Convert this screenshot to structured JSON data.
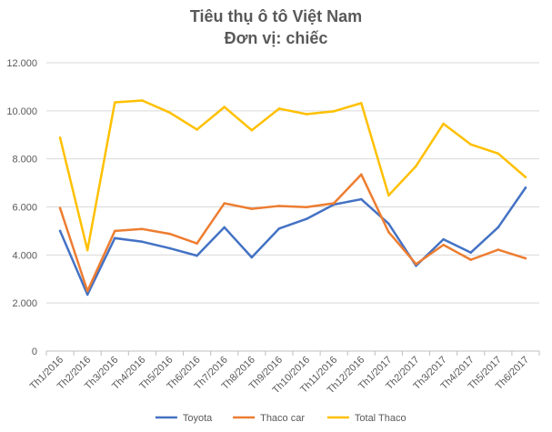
{
  "chart_data": {
    "type": "line",
    "title_line1": "Tiêu thụ ô tô Việt Nam",
    "title_line2": "Đơn vị: chiếc",
    "categories": [
      "Th1/2016",
      "Th2/2016",
      "Th3/2016",
      "Th4/2016",
      "Th5/2016",
      "Th6/2016",
      "Th7/2016",
      "Th8/2016",
      "Th9/2016",
      "Th10/2016",
      "Th11/2016",
      "Th12/2016",
      "Th1/2017",
      "Th2/2017",
      "Th3/2017",
      "Th4/2017",
      "Th5/2017",
      "Th6/2017"
    ],
    "ylim": [
      0,
      12000
    ],
    "yticks": [
      0,
      2000,
      4000,
      6000,
      8000,
      10000,
      12000
    ],
    "ytick_labels": [
      "0",
      "2.000",
      "4.000",
      "6.000",
      "8.000",
      "10.000",
      "12.000"
    ],
    "grid": true,
    "legend_position": "bottom",
    "series": [
      {
        "name": "Toyota",
        "color": "#4472C4",
        "values": [
          5000,
          2350,
          4700,
          4550,
          4280,
          3970,
          5150,
          3900,
          5100,
          5500,
          6100,
          6320,
          5300,
          3550,
          4650,
          4100,
          5150,
          6800
        ]
      },
      {
        "name": "Thaco car",
        "color": "#ED7D31",
        "values": [
          5950,
          2500,
          5000,
          5080,
          4880,
          4480,
          6150,
          5920,
          6040,
          5990,
          6150,
          7350,
          4950,
          3620,
          4420,
          3800,
          4220,
          3860
        ]
      },
      {
        "name": "Total Thaco",
        "color": "#FFC000",
        "values": [
          8880,
          4200,
          10350,
          10430,
          9930,
          9220,
          10160,
          9190,
          10090,
          9860,
          9980,
          10320,
          6480,
          7700,
          9460,
          8600,
          8220,
          7240
        ]
      }
    ]
  }
}
